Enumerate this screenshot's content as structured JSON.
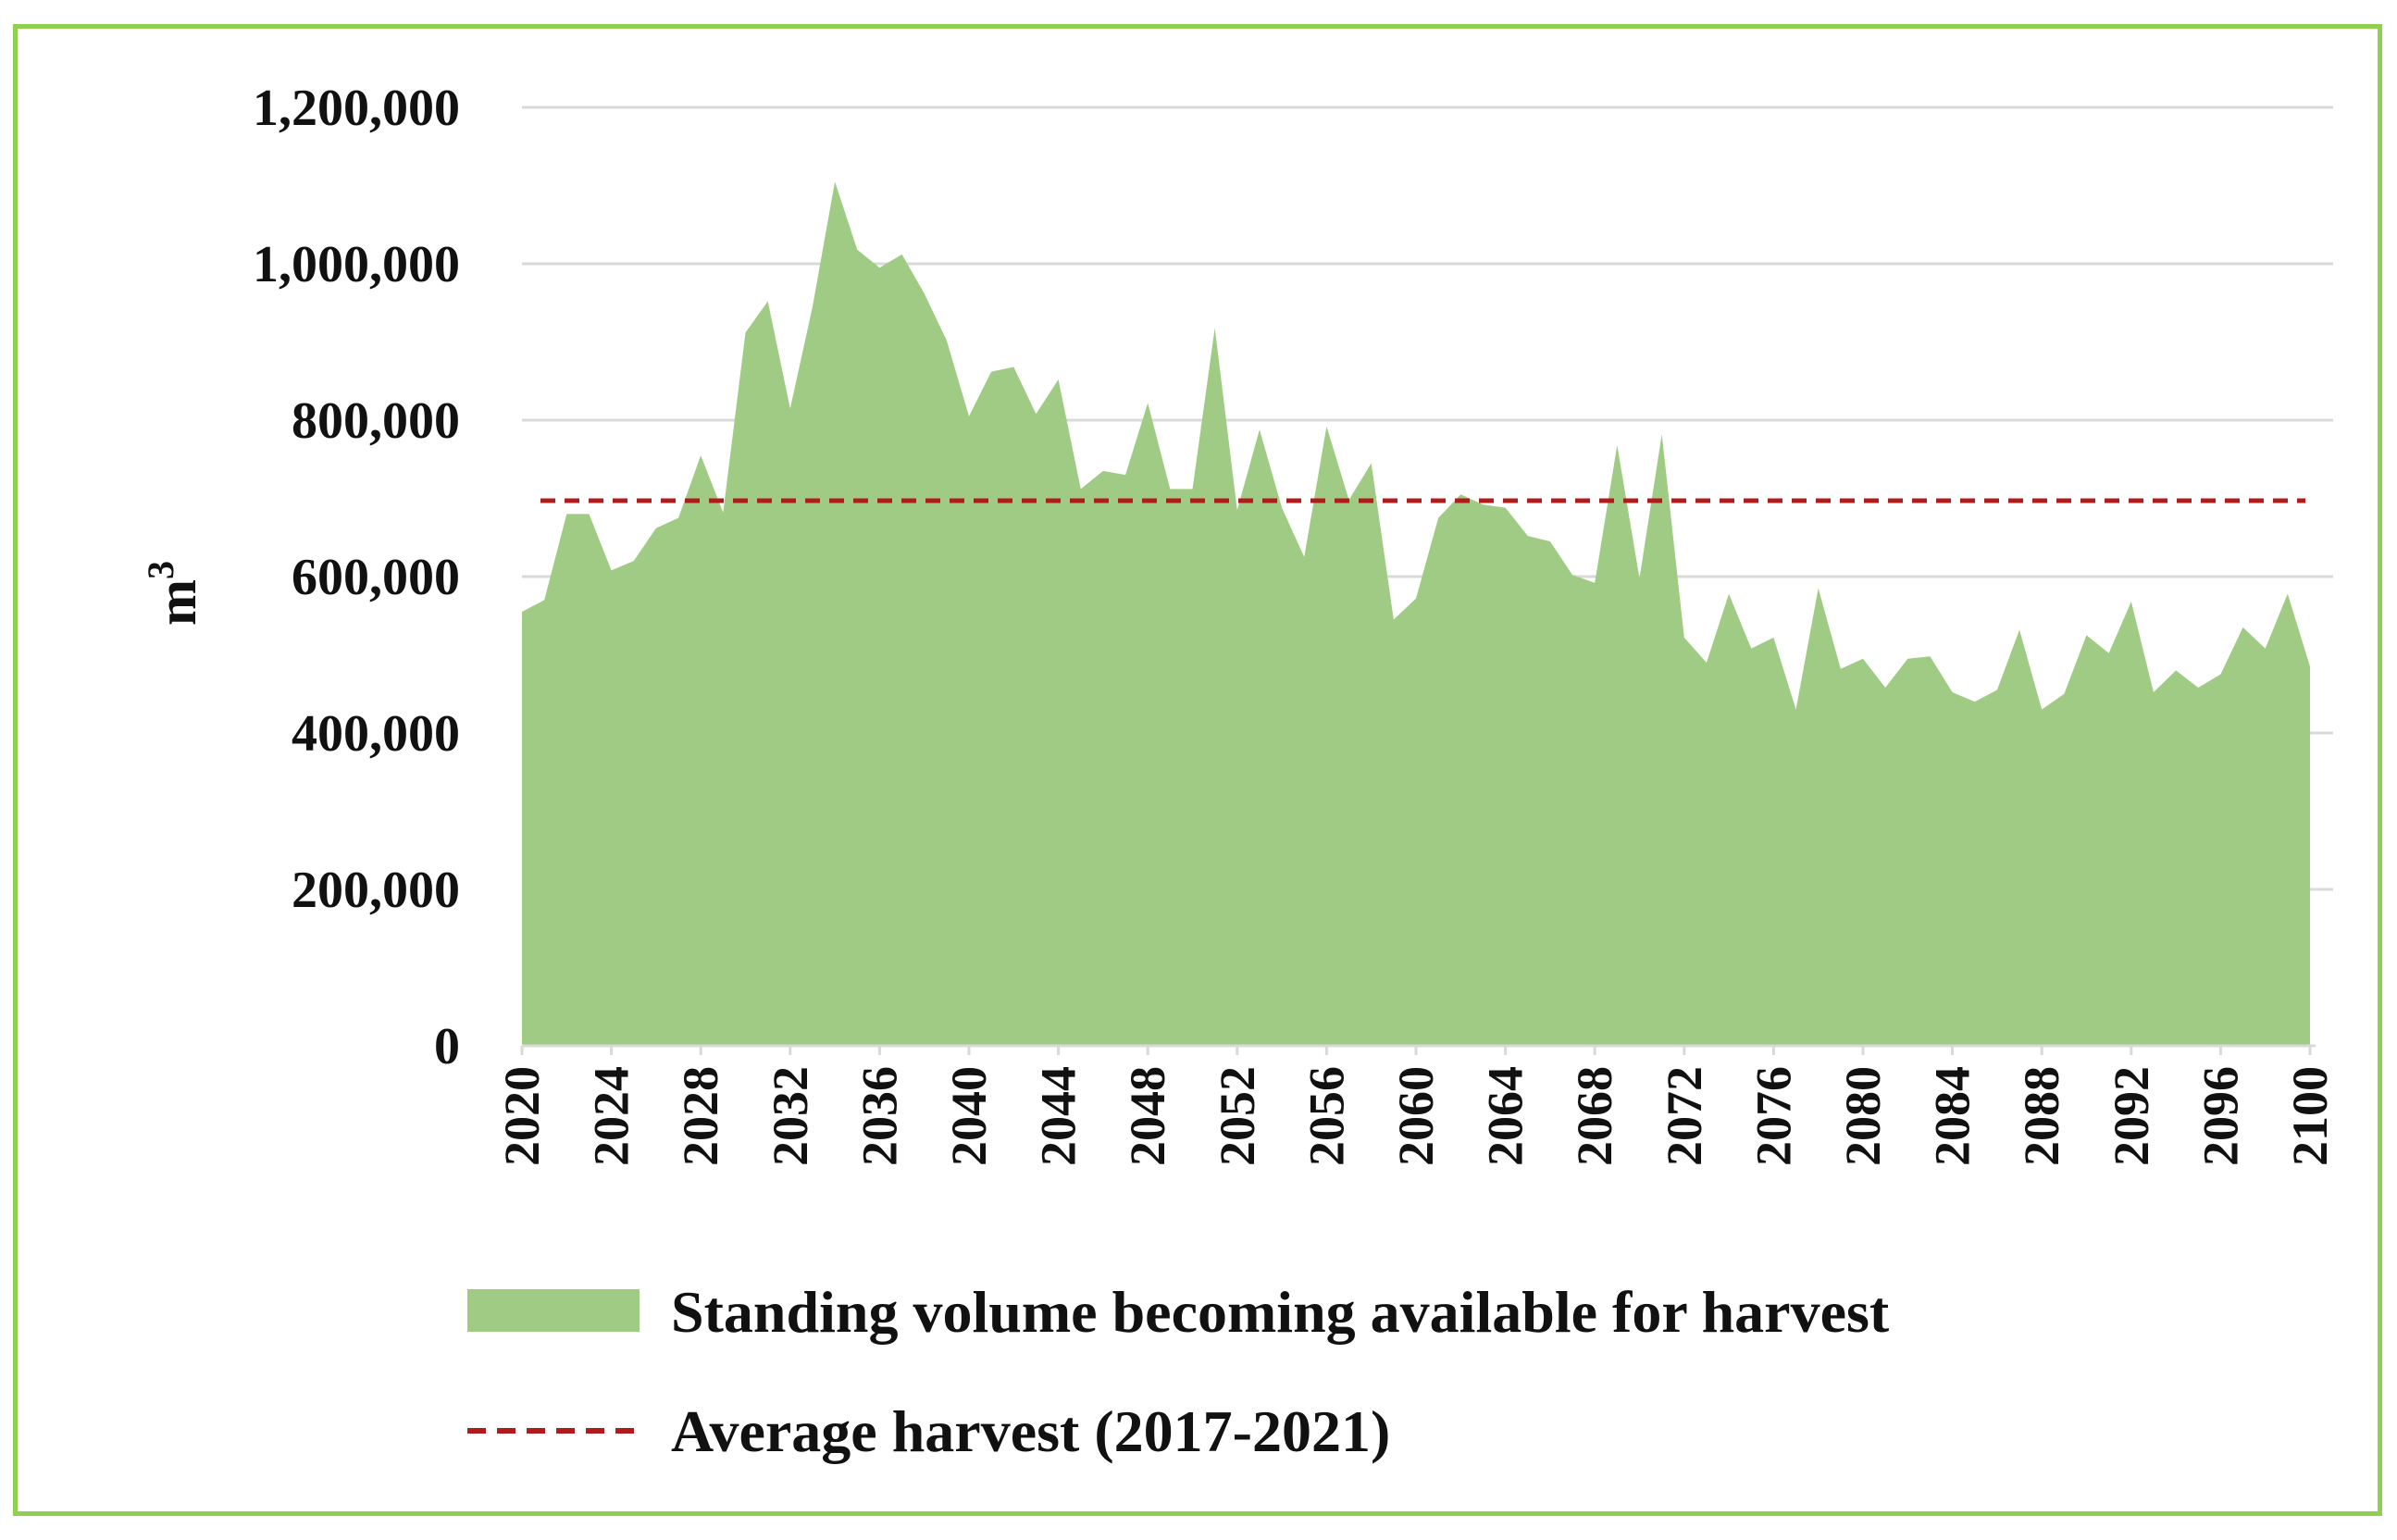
{
  "chart_data": {
    "type": "area",
    "title": "",
    "xlabel": "",
    "ylabel": "m",
    "ylabel_superscript": "3",
    "ylim": [
      0,
      1200000
    ],
    "xlim": [
      2020,
      2100
    ],
    "y_ticks": [
      0,
      200000,
      400000,
      600000,
      800000,
      1000000,
      1200000
    ],
    "y_tick_labels": [
      "0",
      "200,000",
      "400,000",
      "600,000",
      "800,000",
      "1,000,000",
      "1,200,000"
    ],
    "x_ticks": [
      2020,
      2024,
      2028,
      2032,
      2036,
      2040,
      2044,
      2048,
      2052,
      2056,
      2060,
      2064,
      2068,
      2072,
      2076,
      2080,
      2084,
      2088,
      2092,
      2096,
      2100
    ],
    "x_tick_labels": [
      "2020",
      "2024",
      "2028",
      "2032",
      "2036",
      "2040",
      "2044",
      "2048",
      "2052",
      "2056",
      "2060",
      "2064",
      "2068",
      "2072",
      "2076",
      "2080",
      "2084",
      "2088",
      "2092",
      "2096",
      "2100"
    ],
    "grid": true,
    "legend_position": "bottom",
    "series": [
      {
        "name": "Standing volume becoming available for harvest",
        "kind": "area",
        "color": "#a0cb84",
        "x": [
          2020,
          2021,
          2022,
          2023,
          2024,
          2025,
          2026,
          2027,
          2028,
          2029,
          2030,
          2031,
          2032,
          2033,
          2034,
          2035,
          2036,
          2037,
          2038,
          2039,
          2040,
          2041,
          2042,
          2043,
          2044,
          2045,
          2046,
          2047,
          2048,
          2049,
          2050,
          2051,
          2052,
          2053,
          2054,
          2055,
          2056,
          2057,
          2058,
          2059,
          2060,
          2061,
          2062,
          2063,
          2064,
          2065,
          2066,
          2067,
          2068,
          2069,
          2070,
          2071,
          2072,
          2073,
          2074,
          2075,
          2076,
          2077,
          2078,
          2079,
          2080,
          2081,
          2082,
          2083,
          2084,
          2085,
          2086,
          2087,
          2088,
          2089,
          2090,
          2091,
          2092,
          2093,
          2094,
          2095,
          2096,
          2097,
          2098,
          2099,
          2100
        ],
        "values": [
          555000,
          570000,
          680000,
          680000,
          608000,
          620000,
          662000,
          675000,
          755000,
          682000,
          912000,
          952000,
          815000,
          945000,
          1105000,
          1018000,
          995000,
          1012000,
          962000,
          902000,
          805000,
          862000,
          868000,
          808000,
          852000,
          712000,
          735000,
          730000,
          822000,
          712000,
          712000,
          918000,
          685000,
          788000,
          688000,
          625000,
          792000,
          698000,
          745000,
          545000,
          572000,
          675000,
          705000,
          692000,
          688000,
          652000,
          645000,
          602000,
          592000,
          768000,
          598000,
          782000,
          522000,
          490000,
          578000,
          508000,
          522000,
          430000,
          585000,
          482000,
          495000,
          458000,
          495000,
          498000,
          452000,
          440000,
          455000,
          532000,
          430000,
          450000,
          525000,
          502000,
          568000,
          452000,
          480000,
          458000,
          475000,
          535000,
          508000,
          578000,
          485000
        ]
      },
      {
        "name": "Average harvest (2017-2021)",
        "kind": "line",
        "style": "dashed",
        "color": "#b01c1c",
        "value": 697000
      }
    ]
  }
}
